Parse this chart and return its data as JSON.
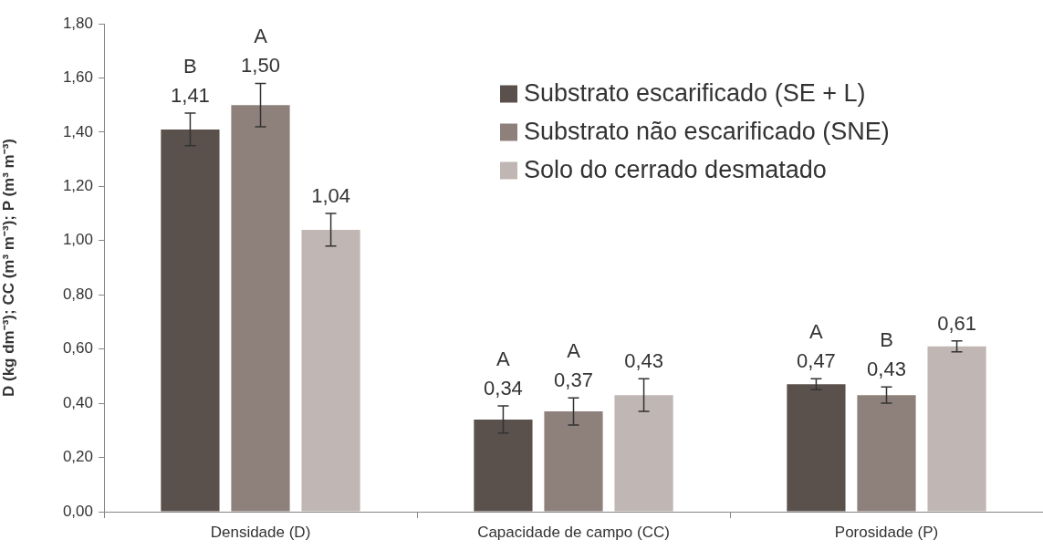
{
  "chart_data": {
    "type": "bar",
    "ylabel": "D (kg dm⁻³); CC (m³ m⁻³); P (m³ m⁻³)",
    "categories": [
      "Densidade (D)",
      "Capacidade de campo (CC)",
      "Porosidade (P)"
    ],
    "series": [
      {
        "name": "Substrato escarificado (SE + L)",
        "color": "#5a504c",
        "values": [
          1.41,
          0.34,
          0.47
        ],
        "errors": [
          0.06,
          0.05,
          0.02
        ],
        "value_labels": [
          "B\n1,41",
          "A\n0,34",
          "A\n0,47"
        ]
      },
      {
        "name": "Substrato não escarificado (SNE)",
        "color": "#8e807b",
        "values": [
          1.5,
          0.37,
          0.43
        ],
        "errors": [
          0.08,
          0.05,
          0.03
        ],
        "value_labels": [
          "A\n1,50",
          "A\n0,37",
          "B\n0,43"
        ]
      },
      {
        "name": "Solo do cerrado desmatado",
        "color": "#c0b6b3",
        "values": [
          1.04,
          0.43,
          0.61
        ],
        "errors": [
          0.06,
          0.06,
          0.02
        ],
        "value_labels": [
          "1,04",
          "0,43",
          "0,61"
        ]
      }
    ],
    "ylim": [
      0,
      1.8
    ],
    "yticks": [
      {
        "value": 0,
        "label": "0,00"
      },
      {
        "value": 0.2,
        "label": "0,20"
      },
      {
        "value": 0.4,
        "label": "0,40"
      },
      {
        "value": 0.6,
        "label": "0,60"
      },
      {
        "value": 0.8,
        "label": "0,80"
      },
      {
        "value": 1.0,
        "label": "1,00"
      },
      {
        "value": 1.2,
        "label": "1,20"
      },
      {
        "value": 1.4,
        "label": "1,40"
      },
      {
        "value": 1.6,
        "label": "1,60"
      },
      {
        "value": 1.8,
        "label": "1,80"
      }
    ],
    "grid": false,
    "legend": "top right"
  }
}
